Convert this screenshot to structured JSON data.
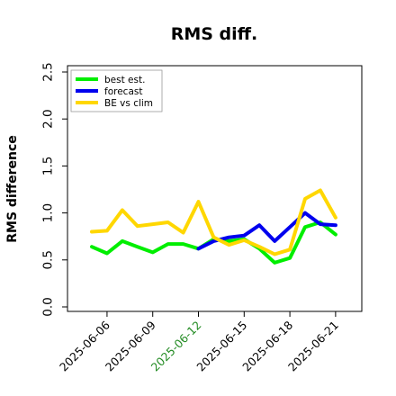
{
  "chart_data": {
    "type": "line",
    "title": "RMS diff.",
    "xlabel": "",
    "ylabel": "RMS difference",
    "ylim": [
      0.0,
      2.5
    ],
    "yticks": [
      0.0,
      0.5,
      1.0,
      1.5,
      2.0,
      2.5
    ],
    "ytick_labels": [
      "0.0",
      "0.5",
      "1.0",
      "1.5",
      "2.0",
      "2.5"
    ],
    "xticks": [
      "2025-06-06",
      "2025-06-09",
      "2025-06-12",
      "2025-06-15",
      "2025-06-18",
      "2025-06-21"
    ],
    "xtick_colors": [
      "#000000",
      "#000000",
      "#228b22",
      "#000000",
      "#000000",
      "#000000"
    ],
    "x": [
      "2025-06-05",
      "2025-06-06",
      "2025-06-07",
      "2025-06-08",
      "2025-06-09",
      "2025-06-10",
      "2025-06-11",
      "2025-06-12",
      "2025-06-13",
      "2025-06-14",
      "2025-06-15",
      "2025-06-16",
      "2025-06-17",
      "2025-06-18",
      "2025-06-19",
      "2025-06-20",
      "2025-06-21"
    ],
    "series": [
      {
        "name": "best est.",
        "color": "#00ee00",
        "values": [
          0.64,
          0.57,
          0.7,
          0.64,
          0.58,
          0.67,
          0.67,
          0.62,
          0.72,
          0.7,
          0.72,
          0.62,
          0.47,
          0.52,
          0.85,
          0.9,
          0.77
        ]
      },
      {
        "name": "forecast",
        "color": "#0000ee",
        "values": [
          null,
          null,
          null,
          null,
          null,
          null,
          null,
          0.62,
          0.7,
          0.74,
          0.76,
          0.87,
          0.7,
          0.85,
          1.0,
          0.88,
          0.87
        ]
      },
      {
        "name": "BE vs clim",
        "color": "#ffd700",
        "values": [
          0.8,
          0.81,
          1.03,
          0.86,
          0.88,
          0.9,
          0.79,
          1.12,
          0.74,
          0.66,
          0.71,
          0.64,
          0.56,
          0.61,
          1.15,
          1.24,
          0.95
        ]
      }
    ],
    "legend_position": "top-left",
    "grid": false
  }
}
